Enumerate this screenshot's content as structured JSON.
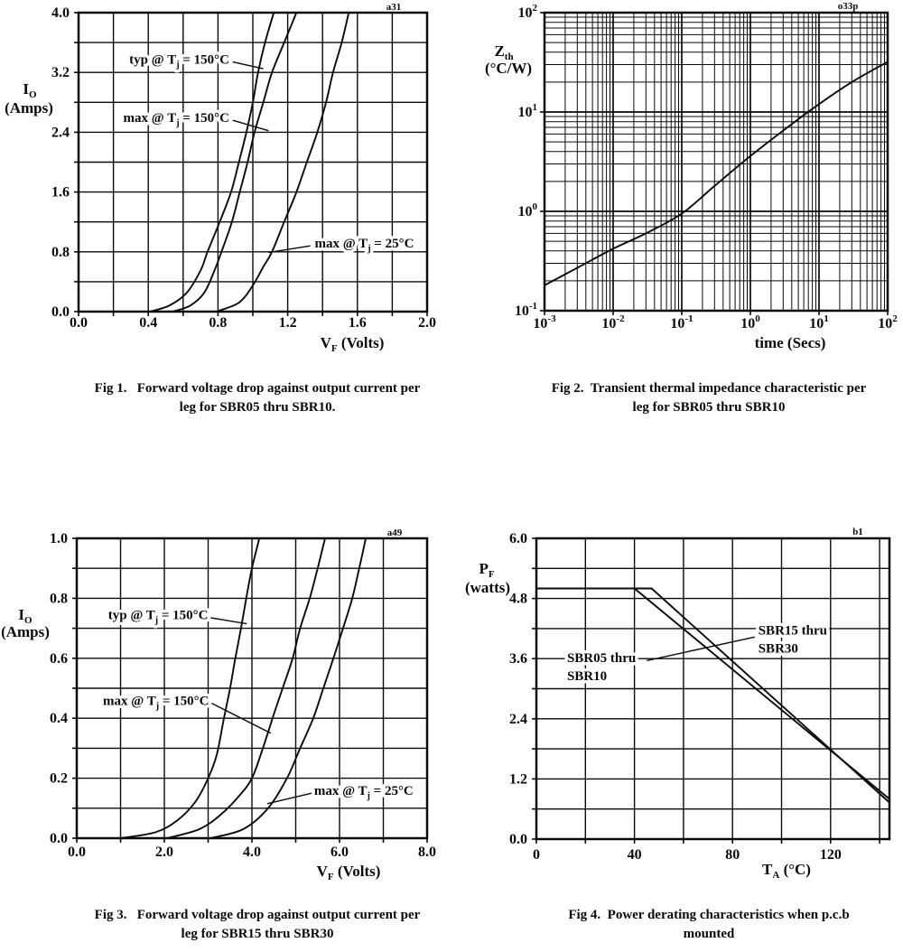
{
  "page": {
    "background": "#ffffff",
    "ink": "#0a0a0a"
  },
  "figures": [
    {
      "caption_line1": "Fig 1.   Forward voltage drop against output current per",
      "caption_line2": "leg for SBR05 thru SBR10."
    },
    {
      "caption_line1": "Fig 2.  Transient thermal impedance characteristic per",
      "caption_line2": "leg for SBR05 thru SBR10"
    },
    {
      "caption_line1": "Fig 3.   Forward voltage drop against output current per",
      "caption_line2": "leg for SBR15 thru SBR30"
    },
    {
      "caption_line1": "Fig 4.  Power derating characteristics when p.c.b",
      "caption_line2": "mounted"
    }
  ],
  "chart_data": [
    {
      "id": "fig1",
      "type": "line",
      "corner_mark": "a31",
      "smooth": true,
      "x_axis": {
        "label": "V_F  (Volts)",
        "scale": "linear",
        "min": 0,
        "max": 2.0,
        "grid_step": 0.2,
        "ticks": [
          {
            "v": 0.0,
            "label": "0.0"
          },
          {
            "v": 0.4,
            "label": "0.4"
          },
          {
            "v": 0.8,
            "label": "0.8"
          },
          {
            "v": 1.2,
            "label": "1.2"
          },
          {
            "v": 1.6,
            "label": "1.6"
          },
          {
            "v": 2.0,
            "label": "2.0"
          }
        ]
      },
      "y_axis": {
        "label_lines": [
          "I_O",
          "(Amps)"
        ],
        "scale": "linear",
        "min": 0,
        "max": 4.0,
        "grid_step": 0.4,
        "ticks": [
          {
            "v": 0.0,
            "label": "0.0"
          },
          {
            "v": 0.8,
            "label": "0.8"
          },
          {
            "v": 1.6,
            "label": "1.6"
          },
          {
            "v": 2.4,
            "label": "2.4"
          },
          {
            "v": 3.2,
            "label": "3.2"
          },
          {
            "v": 4.0,
            "label": "4.0"
          }
        ]
      },
      "series": [
        {
          "name": "typ @ T_j = 150°C",
          "points": [
            [
              0.41,
              0
            ],
            [
              0.52,
              0.08
            ],
            [
              0.62,
              0.25
            ],
            [
              0.7,
              0.55
            ],
            [
              0.74,
              0.8
            ],
            [
              0.81,
              1.2
            ],
            [
              0.875,
              1.6
            ],
            [
              0.92,
              2.0
            ],
            [
              0.963,
              2.4
            ],
            [
              1.0,
              2.8
            ],
            [
              1.03,
              3.2
            ],
            [
              1.07,
              3.6
            ],
            [
              1.12,
              4.0
            ]
          ]
        },
        {
          "name": "max @ T_j = 150°C",
          "points": [
            [
              0.54,
              0
            ],
            [
              0.64,
              0.08
            ],
            [
              0.72,
              0.25
            ],
            [
              0.78,
              0.55
            ],
            [
              0.82,
              0.8
            ],
            [
              0.88,
              1.2
            ],
            [
              0.925,
              1.6
            ],
            [
              0.97,
              2.0
            ],
            [
              1.01,
              2.4
            ],
            [
              1.06,
              2.8
            ],
            [
              1.11,
              3.2
            ],
            [
              1.18,
              3.6
            ],
            [
              1.25,
              4.0
            ]
          ]
        },
        {
          "name": "max @ T_j = 25°C",
          "points": [
            [
              0.79,
              0
            ],
            [
              0.92,
              0.12
            ],
            [
              1.0,
              0.35
            ],
            [
              1.06,
              0.6
            ],
            [
              1.11,
              0.8
            ],
            [
              1.18,
              1.2
            ],
            [
              1.25,
              1.6
            ],
            [
              1.31,
              2.0
            ],
            [
              1.37,
              2.4
            ],
            [
              1.42,
              2.8
            ],
            [
              1.46,
              3.2
            ],
            [
              1.51,
              3.6
            ],
            [
              1.55,
              4.0
            ]
          ]
        }
      ],
      "annotations": [
        {
          "lines": [
            "typ @ T_j = 150°C"
          ],
          "x": 0.865,
          "y": 3.38,
          "anchor": "end",
          "leader": [
            [
              0.885,
              3.34
            ],
            [
              1.06,
              3.25
            ]
          ]
        },
        {
          "lines": [
            "max @ T_j = 150°C"
          ],
          "x": 0.865,
          "y": 2.6,
          "anchor": "end",
          "leader": [
            [
              0.885,
              2.56
            ],
            [
              1.09,
              2.42
            ]
          ]
        },
        {
          "lines": [
            "max @ T_j = 25°C"
          ],
          "x": 1.355,
          "y": 0.92,
          "anchor": "start",
          "leader": [
            [
              1.33,
              0.88
            ],
            [
              1.09,
              0.79
            ]
          ]
        }
      ]
    },
    {
      "id": "fig2",
      "type": "line",
      "corner_mark": "o33p",
      "smooth": true,
      "x_axis": {
        "label": "time  (Secs)",
        "scale": "log",
        "min": 0.001,
        "max": 100,
        "ticks": [
          {
            "v": 0.001,
            "label": "10^-3"
          },
          {
            "v": 0.01,
            "label": "10^-2"
          },
          {
            "v": 0.1,
            "label": "10^-1"
          },
          {
            "v": 1,
            "label": "10^0"
          },
          {
            "v": 10,
            "label": "10^1"
          },
          {
            "v": 100,
            "label": "10^2"
          }
        ]
      },
      "y_axis": {
        "label_lines": [
          "Z_th",
          "(°C/W)"
        ],
        "scale": "log",
        "min": 0.1,
        "max": 100,
        "ticks": [
          {
            "v": 0.1,
            "label": "10^-1"
          },
          {
            "v": 1,
            "label": "10^0"
          },
          {
            "v": 10,
            "label": "10^1"
          },
          {
            "v": 100,
            "label": "10^2"
          }
        ]
      },
      "series": [
        {
          "name": "Z_th per leg",
          "points": [
            [
              0.001,
              0.18
            ],
            [
              0.003,
              0.27
            ],
            [
              0.01,
              0.42
            ],
            [
              0.03,
              0.6
            ],
            [
              0.1,
              0.95
            ],
            [
              0.3,
              1.8
            ],
            [
              1,
              3.6
            ],
            [
              3,
              6.5
            ],
            [
              10,
              12
            ],
            [
              30,
              20
            ],
            [
              100,
              32
            ]
          ]
        }
      ],
      "annotations": []
    },
    {
      "id": "fig3",
      "type": "line",
      "corner_mark": "a49",
      "smooth": true,
      "x_axis": {
        "label": "V_F  (Volts)",
        "scale": "linear",
        "min": 0,
        "max": 8.0,
        "grid_step": 1.0,
        "ticks": [
          {
            "v": 0.0,
            "label": "0.0"
          },
          {
            "v": 2.0,
            "label": "2.0"
          },
          {
            "v": 4.0,
            "label": "4.0"
          },
          {
            "v": 6.0,
            "label": "6.0"
          },
          {
            "v": 8.0,
            "label": "8.0"
          }
        ]
      },
      "y_axis": {
        "label_lines": [
          "I_O",
          "(Amps)"
        ],
        "scale": "linear",
        "min": 0,
        "max": 1.0,
        "grid_step": 0.1,
        "ticks": [
          {
            "v": 0.0,
            "label": "0.0"
          },
          {
            "v": 0.2,
            "label": "0.2"
          },
          {
            "v": 0.4,
            "label": "0.4"
          },
          {
            "v": 0.6,
            "label": "0.6"
          },
          {
            "v": 0.8,
            "label": "0.8"
          },
          {
            "v": 1.0,
            "label": "1.0"
          }
        ]
      },
      "series": [
        {
          "name": "typ @ T_j = 150°C",
          "points": [
            [
              1.0,
              0
            ],
            [
              1.8,
              0.02
            ],
            [
              2.3,
              0.06
            ],
            [
              2.7,
              0.12
            ],
            [
              3.0,
              0.2
            ],
            [
              3.2,
              0.28
            ],
            [
              3.36,
              0.4
            ],
            [
              3.5,
              0.5
            ],
            [
              3.62,
              0.6
            ],
            [
              3.75,
              0.7
            ],
            [
              3.87,
              0.8
            ],
            [
              4.0,
              0.9
            ],
            [
              4.17,
              1.0
            ]
          ]
        },
        {
          "name": "max @ T_j = 150°C",
          "points": [
            [
              2.06,
              0
            ],
            [
              2.8,
              0.03
            ],
            [
              3.3,
              0.08
            ],
            [
              3.7,
              0.14
            ],
            [
              4.0,
              0.2
            ],
            [
              4.25,
              0.3
            ],
            [
              4.47,
              0.4
            ],
            [
              4.7,
              0.5
            ],
            [
              4.93,
              0.6
            ],
            [
              5.1,
              0.7
            ],
            [
              5.32,
              0.8
            ],
            [
              5.5,
              0.9
            ],
            [
              5.67,
              1.0
            ]
          ]
        },
        {
          "name": "max @ T_j = 25°C",
          "points": [
            [
              3.05,
              0
            ],
            [
              3.8,
              0.03
            ],
            [
              4.37,
              0.1
            ],
            [
              4.8,
              0.2
            ],
            [
              5.1,
              0.3
            ],
            [
              5.4,
              0.4
            ],
            [
              5.63,
              0.5
            ],
            [
              5.86,
              0.6
            ],
            [
              6.08,
              0.7
            ],
            [
              6.29,
              0.8
            ],
            [
              6.45,
              0.9
            ],
            [
              6.6,
              1.0
            ]
          ]
        }
      ],
      "annotations": [
        {
          "lines": [
            "typ @ T_j = 150°C"
          ],
          "x": 3.0,
          "y": 0.745,
          "anchor": "end",
          "leader": [
            [
              3.06,
              0.735
            ],
            [
              3.88,
              0.715
            ]
          ]
        },
        {
          "lines": [
            "max @ T_j = 150°C"
          ],
          "x": 3.02,
          "y": 0.46,
          "anchor": "end",
          "leader": [
            [
              3.08,
              0.45
            ],
            [
              4.43,
              0.35
            ]
          ]
        },
        {
          "lines": [
            "max @ T_j = 25°C"
          ],
          "x": 5.42,
          "y": 0.16,
          "anchor": "start",
          "leader": [
            [
              5.36,
              0.15
            ],
            [
              4.35,
              0.115
            ]
          ]
        }
      ]
    },
    {
      "id": "fig4",
      "type": "line",
      "corner_mark": "b1",
      "smooth": false,
      "x_axis": {
        "label": "T_A   (°C)",
        "scale": "linear",
        "min": 0,
        "max": 144,
        "grid_step": 20,
        "ticks": [
          {
            "v": 0,
            "label": "0"
          },
          {
            "v": 40,
            "label": "40"
          },
          {
            "v": 80,
            "label": "80"
          },
          {
            "v": 120,
            "label": "120"
          }
        ]
      },
      "y_axis": {
        "label_lines": [
          "P_F",
          "(watts)"
        ],
        "scale": "linear",
        "min": 0,
        "max": 6.0,
        "grid_step": 0.6,
        "ticks": [
          {
            "v": 0.0,
            "label": "0.0"
          },
          {
            "v": 1.2,
            "label": "1.2"
          },
          {
            "v": 2.4,
            "label": "2.4"
          },
          {
            "v": 3.6,
            "label": "3.6"
          },
          {
            "v": 4.8,
            "label": "4.8"
          },
          {
            "v": 6.0,
            "label": "6.0"
          }
        ]
      },
      "series": [
        {
          "name": "SBR05 thru SBR10",
          "points": [
            [
              0,
              5.0
            ],
            [
              40,
              5.0
            ],
            [
              144,
              0.8
            ]
          ]
        },
        {
          "name": "SBR15 thru SBR30",
          "points": [
            [
              0,
              5.0
            ],
            [
              47,
              5.0
            ],
            [
              144,
              0.73
            ]
          ]
        }
      ],
      "annotations": [
        {
          "lines": [
            "SBR15 thru",
            "SBR30"
          ],
          "x": 90.5,
          "y": 4.17,
          "anchor": "start",
          "leader": [
            [
              89,
              4.03
            ],
            [
              45,
              3.56
            ]
          ]
        },
        {
          "lines": [
            "SBR05 thru",
            "SBR10"
          ],
          "x": 12.5,
          "y": 3.62,
          "anchor": "start"
        }
      ]
    }
  ]
}
